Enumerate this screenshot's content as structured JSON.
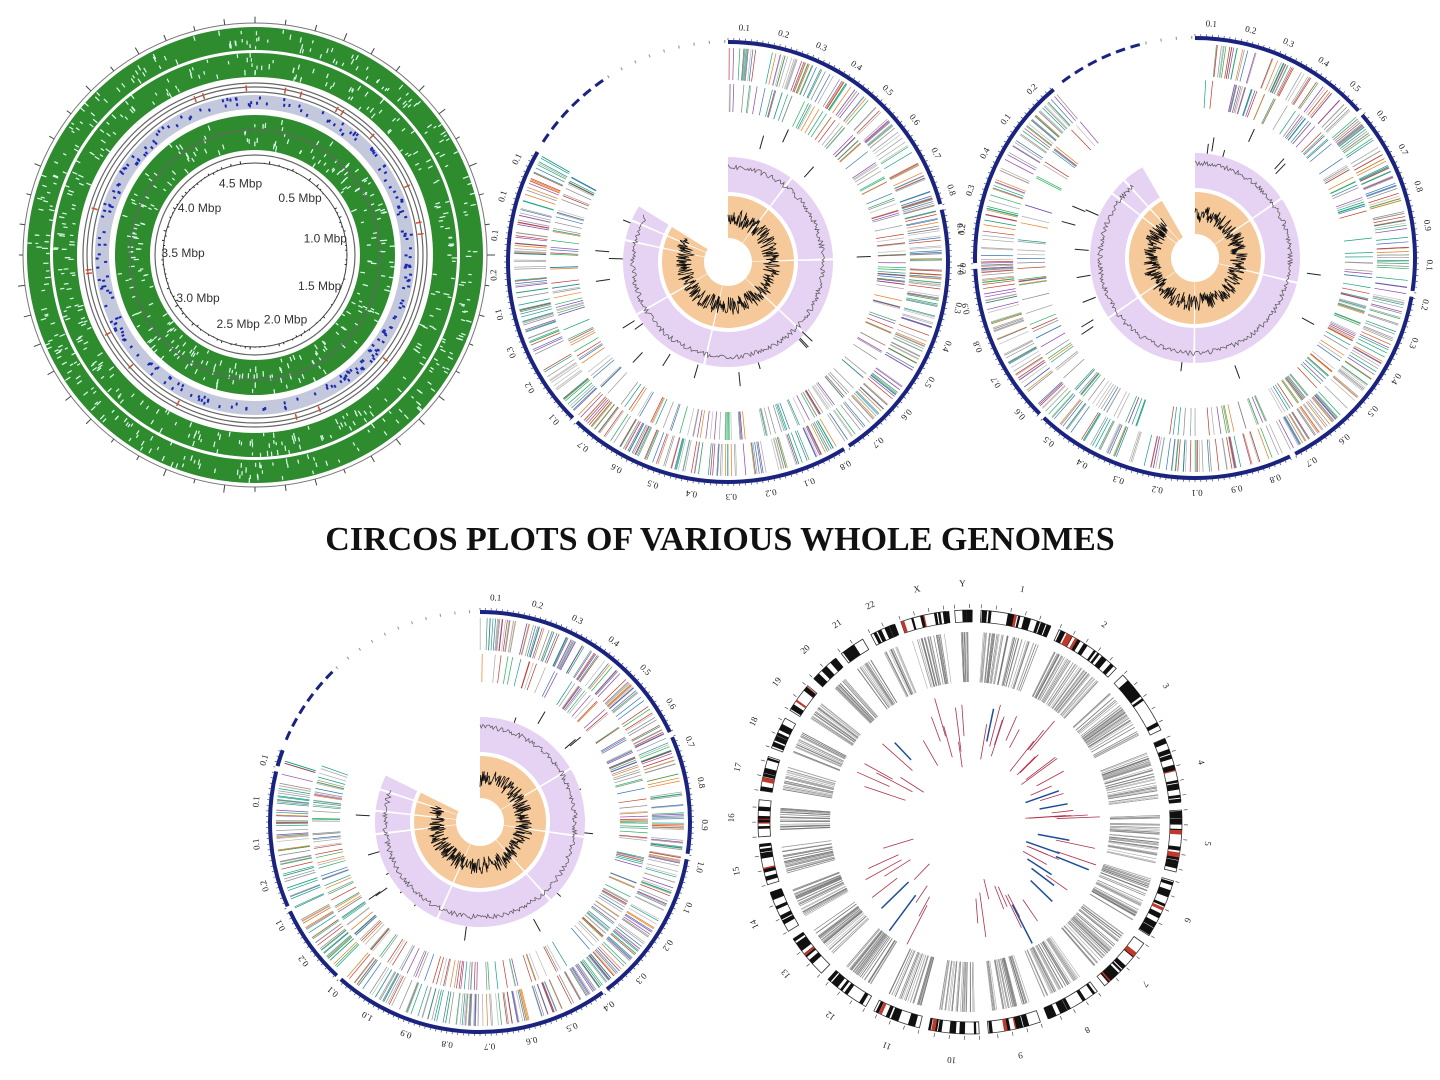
{
  "title": "CIRCOS PLOTS OF VARIOUS WHOLE GENOMES",
  "plots": [
    {
      "labels": [
        "0.5 Mbp",
        "1.0 Mbp",
        "1.5 Mbp",
        "2.0 Mbp",
        "2.5 Mbp",
        "3.0 Mbp",
        "3.5 Mbp",
        "4.0 Mbp",
        "4.5 Mbp"
      ]
    },
    {
      "ticks": [
        "0.1",
        "0.2",
        "0.3",
        "0.4",
        "0.5",
        "0.6",
        "0.7",
        "0.8",
        "0.1",
        "0.2",
        "0.3",
        "0.4",
        "0.5",
        "0.6",
        "0.7",
        "0.8",
        "0.1",
        "0.2",
        "0.3",
        "0.4",
        "0.5",
        "0.6",
        "0.7",
        "0.1",
        "0.2",
        "0.3",
        "0.1",
        "0.2",
        "0.1",
        "0.1",
        "0.1"
      ]
    },
    {
      "ticks": [
        "0.1",
        "0.2",
        "0.3",
        "0.4",
        "0.5",
        "0.6",
        "0.7",
        "0.8",
        "0.9",
        "0.1",
        "0.2",
        "0.3",
        "0.4",
        "0.5",
        "0.6",
        "0.7",
        "0.8",
        "0.9",
        "0.1",
        "0.2",
        "0.3",
        "0.4",
        "0.5",
        "0.6",
        "0.7",
        "0.8",
        "0.9",
        "0.1",
        "0.2",
        "0.3",
        "0.4",
        "0.1",
        "0.2"
      ]
    },
    {
      "ticks": [
        "0.1",
        "0.2",
        "0.3",
        "0.4",
        "0.5",
        "0.6",
        "0.7",
        "0.8",
        "0.9",
        "1.0",
        "0.1",
        "0.2",
        "0.3",
        "0.4",
        "0.5",
        "0.6",
        "0.7",
        "0.8",
        "0.9",
        "1.0",
        "0.1",
        "0.2",
        "0.1",
        "0.2",
        "0.1",
        "0.1",
        "0.1"
      ]
    },
    {
      "labels": [
        "1",
        "2",
        "3",
        "4",
        "5",
        "6",
        "7",
        "8",
        "9",
        "10",
        "11",
        "12",
        "13",
        "14",
        "15",
        "16",
        "17",
        "18",
        "19",
        "20",
        "21",
        "22",
        "X",
        "Y"
      ]
    }
  ]
}
